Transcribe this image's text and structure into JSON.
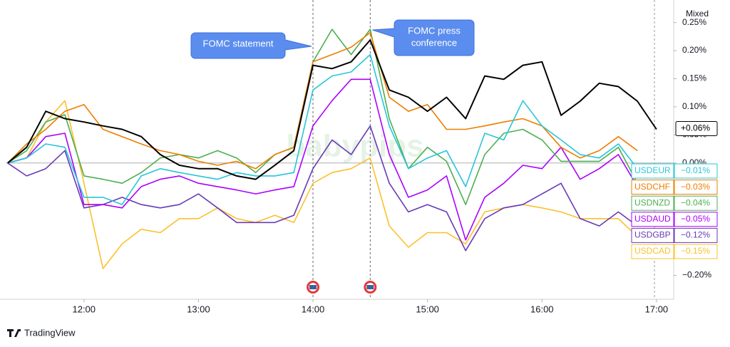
{
  "chart_data": {
    "type": "line",
    "x": [
      "11:20",
      "11:30",
      "11:40",
      "11:50",
      "12:00",
      "12:10",
      "12:20",
      "12:30",
      "12:40",
      "12:50",
      "13:00",
      "13:10",
      "13:20",
      "13:30",
      "13:40",
      "13:50",
      "14:00",
      "14:10",
      "14:20",
      "14:30",
      "14:40",
      "14:50",
      "15:00",
      "15:10",
      "15:20",
      "15:30",
      "15:40",
      "15:50",
      "16:00",
      "16:10",
      "16:20",
      "16:30",
      "16:40",
      "16:50",
      "17:00"
    ],
    "xlim": [
      "11:19",
      "17:09"
    ],
    "xticks": [
      "12:00",
      "13:00",
      "14:00",
      "15:00",
      "16:00",
      "17:00"
    ],
    "ylim": [
      -0.24,
      0.28
    ],
    "yticks": [
      {
        "value": 0.25,
        "label": "0.25%"
      },
      {
        "value": 0.2,
        "label": "0.20%"
      },
      {
        "value": 0.15,
        "label": "0.15%"
      },
      {
        "value": 0.1,
        "label": "0.10%"
      },
      {
        "value": 0.05,
        "label": "0.05%"
      },
      {
        "value": 0,
        "label": "0.00%"
      },
      {
        "value": -0.2,
        "label": "−0.20%"
      }
    ],
    "series": [
      {
        "name": null,
        "color": "#000000",
        "end_label": "+0.06%",
        "values": [
          0,
          0.028,
          0.092,
          0.079,
          0.073,
          0.066,
          0.06,
          0.047,
          0.015,
          -0.004,
          -0.01,
          -0.01,
          -0.023,
          -0.029,
          -0.004,
          0.022,
          0.174,
          0.168,
          0.18,
          0.219,
          0.13,
          0.117,
          0.092,
          0.117,
          0.079,
          0.155,
          0.149,
          0.174,
          0.18,
          0.085,
          0.11,
          0.142,
          0.136,
          0.11,
          0.06
        ]
      },
      {
        "name": "USDEUR",
        "color": "#26c6da",
        "end_label": "−0.01%",
        "values": [
          0,
          0.009,
          0.034,
          0.028,
          -0.061,
          -0.061,
          -0.074,
          -0.023,
          -0.01,
          -0.017,
          -0.023,
          -0.029,
          -0.017,
          -0.023,
          -0.023,
          -0.017,
          0.13,
          0.155,
          0.162,
          0.193,
          0.066,
          -0.01,
          0.009,
          0.022,
          -0.042,
          0.053,
          0.041,
          0.111,
          0.066,
          0.041,
          0.015,
          0.009,
          0.034,
          -0.01,
          null
        ]
      },
      {
        "name": "USDCHF",
        "color": "#ef7d00",
        "end_label": "−0.03%",
        "values": [
          0,
          0.034,
          0.06,
          0.092,
          0.104,
          0.06,
          0.047,
          0.034,
          0.022,
          0.015,
          0.003,
          -0.004,
          0.003,
          -0.01,
          0.015,
          0.028,
          0.18,
          0.193,
          0.206,
          0.232,
          0.117,
          0.092,
          0.104,
          0.06,
          0.06,
          0.066,
          0.073,
          0.079,
          0.066,
          0.028,
          0.009,
          0.022,
          0.047,
          0.022,
          null
        ]
      },
      {
        "name": "USDNZD",
        "color": "#4caf50",
        "end_label": "−0.04%",
        "values": [
          0,
          0.022,
          0.073,
          0.086,
          -0.023,
          -0.029,
          -0.036,
          -0.017,
          0.009,
          0.015,
          0.009,
          0.022,
          0.009,
          -0.017,
          0.015,
          0.028,
          0.18,
          0.238,
          0.193,
          0.238,
          0.079,
          -0.01,
          0.028,
          0.003,
          -0.074,
          0.015,
          0.053,
          0.06,
          0.041,
          0.003,
          0.003,
          0.003,
          0.028,
          -0.036,
          null
        ]
      },
      {
        "name": "USDAUD",
        "color": "#aa00ff",
        "end_label": "−0.05%",
        "values": [
          0,
          0.009,
          0.047,
          0.053,
          -0.074,
          -0.074,
          -0.08,
          -0.042,
          -0.029,
          -0.023,
          -0.036,
          -0.042,
          -0.048,
          -0.055,
          -0.048,
          -0.042,
          0.066,
          0.111,
          0.149,
          0.149,
          0.015,
          -0.061,
          -0.048,
          -0.023,
          -0.137,
          -0.061,
          -0.036,
          -0.004,
          -0.01,
          0.028,
          -0.029,
          -0.01,
          0.015,
          -0.042,
          null
        ]
      },
      {
        "name": "USDGBP",
        "color": "#673ab7",
        "end_label": "−0.12%",
        "values": [
          0,
          -0.023,
          -0.01,
          0.022,
          -0.08,
          -0.074,
          -0.061,
          -0.074,
          -0.08,
          -0.074,
          -0.055,
          -0.08,
          -0.106,
          -0.106,
          -0.106,
          -0.093,
          -0.01,
          0.041,
          0.015,
          0.066,
          -0.036,
          -0.087,
          -0.074,
          -0.087,
          -0.156,
          -0.099,
          -0.08,
          -0.074,
          -0.055,
          -0.036,
          -0.099,
          -0.112,
          -0.087,
          -0.112,
          null
        ]
      },
      {
        "name": "USDCAD",
        "color": "#fbc02d",
        "end_label": "−0.15%",
        "values": [
          0,
          0.009,
          0.073,
          0.111,
          -0.036,
          -0.188,
          -0.144,
          -0.118,
          -0.124,
          -0.099,
          -0.099,
          -0.08,
          -0.099,
          -0.106,
          -0.093,
          -0.106,
          -0.036,
          -0.017,
          -0.01,
          0.009,
          -0.112,
          -0.15,
          -0.124,
          -0.124,
          -0.144,
          -0.087,
          -0.08,
          -0.074,
          -0.08,
          -0.087,
          -0.099,
          -0.099,
          -0.099,
          -0.131,
          null
        ]
      }
    ],
    "annotations": [
      {
        "text": "FOMC statement",
        "x": "14:00"
      },
      {
        "lines": [
          "FOMC press",
          "conference"
        ],
        "x": "14:30"
      }
    ],
    "scale_button": "Mixed",
    "watermark": "babypips",
    "brand": "TradingView"
  }
}
